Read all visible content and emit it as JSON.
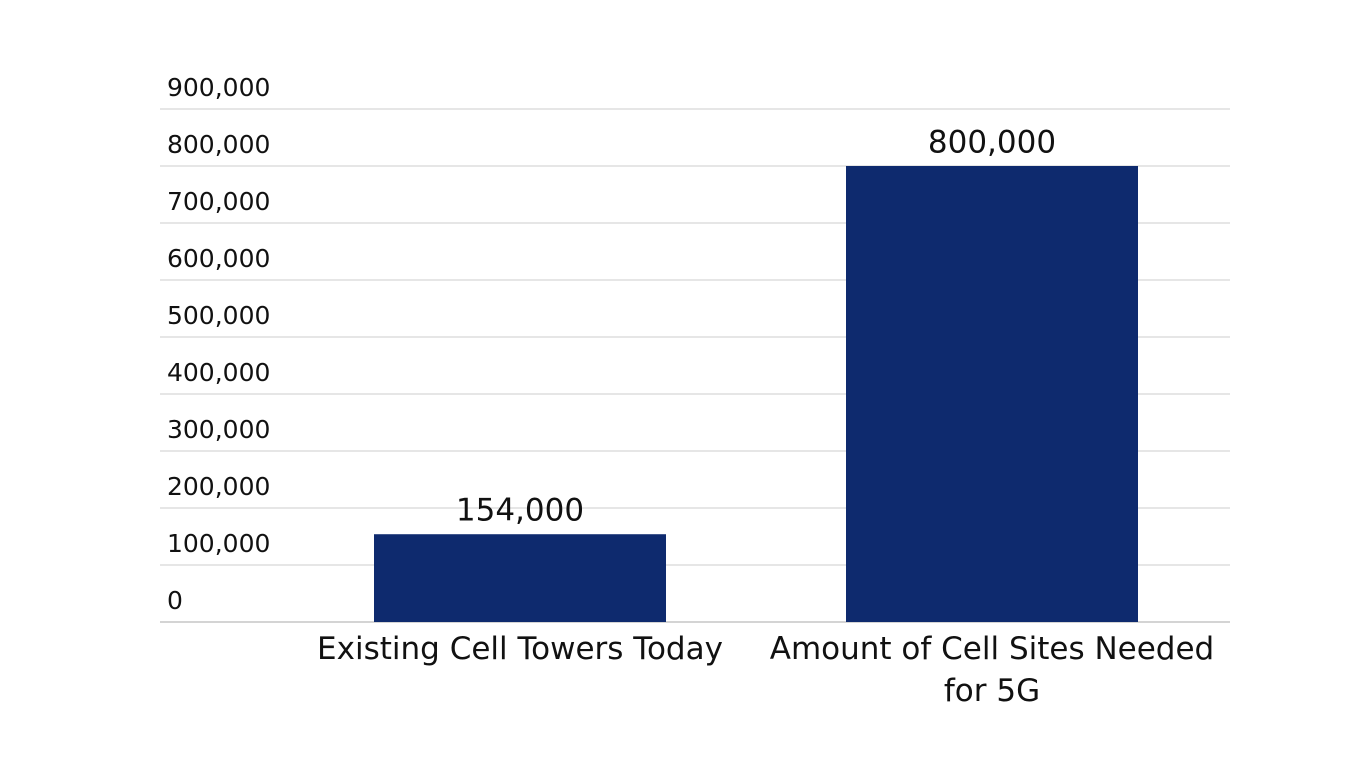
{
  "chart_data": {
    "type": "bar",
    "categories": [
      "Existing Cell Towers Today",
      "Amount of Cell Sites Needed for 5G"
    ],
    "values": [
      154000,
      800000
    ],
    "value_labels": [
      "154,000",
      "800,000"
    ],
    "color": "#0e2a6e",
    "ylim": [
      0,
      900000
    ],
    "yticks": [
      0,
      {
        "value": 100000,
        "label": "100,000"
      },
      {
        "value": 200000,
        "label": "200,000"
      },
      {
        "value": 300000,
        "label": "300,000"
      },
      {
        "value": 400000,
        "label": "400,000"
      },
      {
        "value": 500000,
        "label": "500,000"
      },
      {
        "value": 600000,
        "label": "600,000"
      },
      {
        "value": 700000,
        "label": "700,000"
      },
      {
        "value": 800000,
        "label": "800,000"
      },
      {
        "value": 900000,
        "label": "900,000"
      }
    ],
    "grid": true
  }
}
